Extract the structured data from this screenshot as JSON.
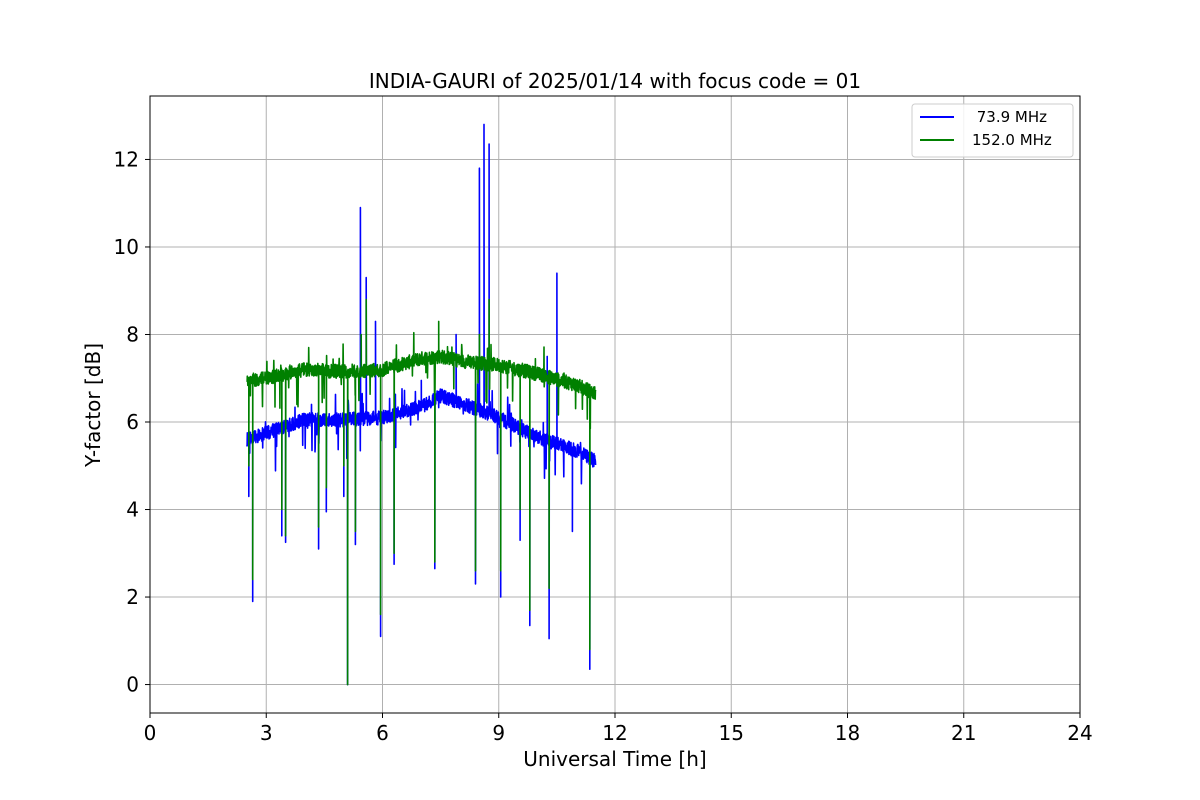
{
  "chart_data": {
    "type": "line",
    "title": "INDIA-GAURI of 2025/01/14 with focus code = 01",
    "xlabel": "Universal Time [h]",
    "ylabel": "Y-factor [dB]",
    "xlim": [
      0,
      24
    ],
    "ylim": [
      -0.65,
      13.45
    ],
    "xticks": [
      0,
      3,
      6,
      9,
      12,
      15,
      18,
      21,
      24
    ],
    "yticks": [
      0,
      2,
      4,
      6,
      8,
      10,
      12
    ],
    "grid": true,
    "legend_position": "top-right",
    "series": [
      {
        "name": " 73.9 MHz",
        "color": "#0000ff",
        "baseline": [
          [
            2.5,
            5.6
          ],
          [
            3.0,
            5.75
          ],
          [
            4.0,
            6.05
          ],
          [
            5.0,
            6.05
          ],
          [
            6.0,
            6.1
          ],
          [
            7.0,
            6.35
          ],
          [
            7.5,
            6.6
          ],
          [
            8.0,
            6.45
          ],
          [
            9.0,
            6.1
          ],
          [
            10.0,
            5.65
          ],
          [
            11.0,
            5.35
          ],
          [
            11.5,
            5.1
          ]
        ],
        "excursions": [
          [
            2.55,
            4.3
          ],
          [
            2.65,
            1.9
          ],
          [
            3.4,
            3.4
          ],
          [
            3.5,
            3.25
          ],
          [
            4.35,
            3.1
          ],
          [
            4.55,
            3.95
          ],
          [
            5.0,
            4.3
          ],
          [
            5.1,
            0.0
          ],
          [
            5.3,
            3.2
          ],
          [
            5.43,
            10.9
          ],
          [
            5.58,
            9.3
          ],
          [
            5.82,
            8.3
          ],
          [
            5.95,
            1.1
          ],
          [
            6.3,
            2.75
          ],
          [
            7.0,
            6.95
          ],
          [
            7.35,
            2.65
          ],
          [
            7.9,
            8.0
          ],
          [
            8.4,
            2.3
          ],
          [
            8.5,
            11.8
          ],
          [
            8.62,
            12.8
          ],
          [
            8.75,
            12.35
          ],
          [
            9.05,
            2.0
          ],
          [
            9.55,
            3.3
          ],
          [
            9.8,
            1.35
          ],
          [
            10.25,
            7.5
          ],
          [
            10.3,
            1.05
          ],
          [
            10.5,
            9.4
          ],
          [
            10.9,
            3.5
          ],
          [
            11.35,
            0.35
          ]
        ]
      },
      {
        "name": "152.0 MHz",
        "color": "#008000",
        "baseline": [
          [
            2.5,
            6.95
          ],
          [
            3.0,
            7.0
          ],
          [
            4.0,
            7.2
          ],
          [
            5.0,
            7.15
          ],
          [
            6.0,
            7.2
          ],
          [
            7.0,
            7.45
          ],
          [
            7.5,
            7.5
          ],
          [
            8.0,
            7.4
          ],
          [
            9.0,
            7.3
          ],
          [
            10.0,
            7.1
          ],
          [
            11.0,
            6.85
          ],
          [
            11.5,
            6.65
          ]
        ],
        "excursions": [
          [
            2.55,
            5.0
          ],
          [
            2.65,
            2.4
          ],
          [
            3.4,
            4.0
          ],
          [
            3.5,
            3.4
          ],
          [
            4.35,
            3.6
          ],
          [
            4.55,
            4.5
          ],
          [
            5.0,
            5.0
          ],
          [
            5.1,
            0.0
          ],
          [
            5.3,
            3.5
          ],
          [
            5.45,
            8.0
          ],
          [
            5.58,
            8.8
          ],
          [
            5.95,
            1.6
          ],
          [
            6.3,
            3.0
          ],
          [
            7.35,
            2.8
          ],
          [
            7.45,
            8.3
          ],
          [
            8.4,
            2.6
          ],
          [
            8.5,
            8.0
          ],
          [
            8.75,
            8.8
          ],
          [
            9.05,
            2.6
          ],
          [
            9.55,
            4.0
          ],
          [
            9.8,
            1.7
          ],
          [
            10.3,
            2.2
          ],
          [
            11.35,
            0.8
          ]
        ]
      }
    ]
  }
}
